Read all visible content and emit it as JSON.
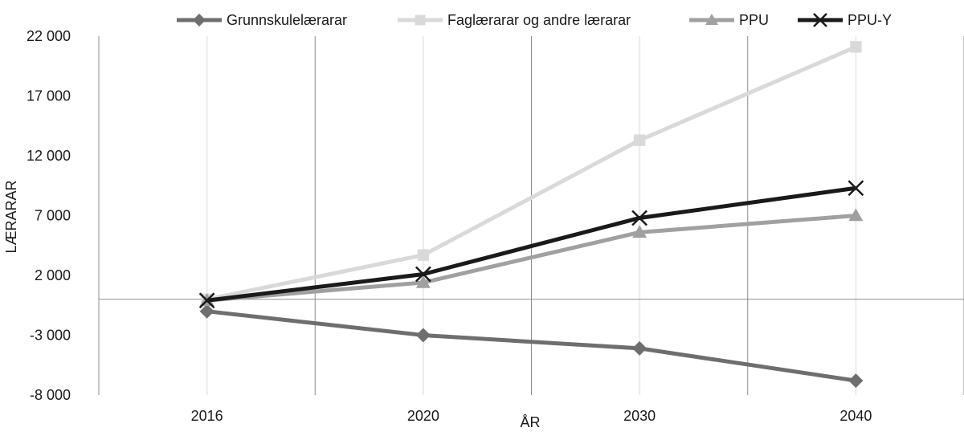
{
  "chart_data": {
    "type": "line",
    "categories": [
      "2016",
      "2020",
      "2030",
      "2040"
    ],
    "xlabel": "ÅR",
    "ylabel": "LÆRARAR",
    "ylim": [
      -8000,
      22000
    ],
    "yticks": [
      -8000,
      -3000,
      2000,
      7000,
      12000,
      17000,
      22000
    ],
    "ytick_labels": [
      "-8 000",
      "-3 000",
      "2 000",
      "7 000",
      "12 000",
      "17 000",
      "22 000"
    ],
    "grid": "vertical",
    "legend_position": "top",
    "series": [
      {
        "name": "Grunnskulelærarar",
        "values": [
          -1000,
          -3000,
          -4100,
          -6800
        ],
        "color": "#6e6e6e",
        "marker": "diamond"
      },
      {
        "name": "Faglærarar og andre lærarar",
        "values": [
          0,
          3700,
          13300,
          21100
        ],
        "color": "#d9d9d9",
        "marker": "square"
      },
      {
        "name": "PPU",
        "values": [
          -100,
          1400,
          5600,
          7000
        ],
        "color": "#a0a0a0",
        "marker": "triangle"
      },
      {
        "name": "PPU-Y",
        "values": [
          -100,
          2100,
          6800,
          9300
        ],
        "color": "#1a1a1a",
        "marker": "x"
      }
    ]
  }
}
